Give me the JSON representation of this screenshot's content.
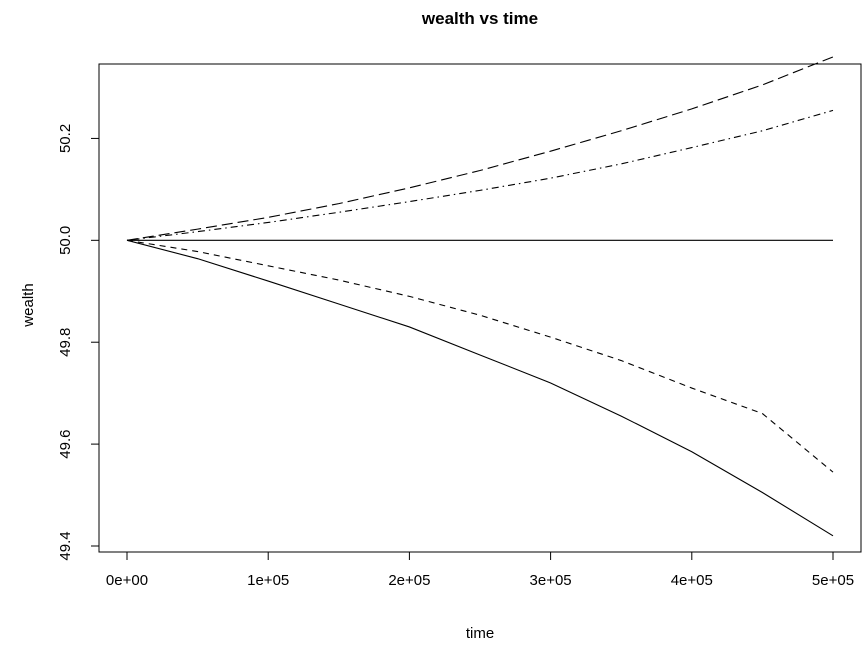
{
  "chart_data": {
    "type": "line",
    "title": "wealth vs time",
    "xlabel": "time",
    "ylabel": "wealth",
    "xlim": [
      0,
      500000
    ],
    "ylim": [
      49.4,
      50.35
    ],
    "x_ticks": [
      0,
      100000,
      200000,
      300000,
      400000,
      500000
    ],
    "x_tick_labels": [
      "0e+00",
      "1e+05",
      "2e+05",
      "3e+05",
      "4e+05",
      "5e+05"
    ],
    "y_ticks": [
      49.4,
      49.6,
      49.8,
      50.0,
      50.2
    ],
    "y_tick_labels": [
      "49.4",
      "49.6",
      "49.8",
      "50.0",
      "50.2"
    ],
    "grid": false,
    "x": [
      0,
      50000,
      100000,
      150000,
      200000,
      250000,
      300000,
      350000,
      400000,
      450000,
      500000
    ],
    "series": [
      {
        "line_style": "solid",
        "values": [
          50.0,
          49.964,
          49.92,
          49.875,
          49.83,
          49.775,
          49.72,
          49.655,
          49.585,
          49.505,
          49.42
        ]
      },
      {
        "line_style": "dashed",
        "values": [
          50.0,
          49.978,
          49.95,
          49.922,
          49.89,
          49.853,
          49.81,
          49.764,
          49.71,
          49.66,
          49.545
        ]
      },
      {
        "line_style": "solid",
        "values": [
          50.0,
          50.0,
          50.0,
          50.0,
          50.0,
          50.0,
          50.0,
          50.0,
          50.0,
          50.0,
          50.0
        ]
      },
      {
        "line_style": "dotdash",
        "values": [
          50.0,
          50.017,
          50.035,
          50.055,
          50.076,
          50.098,
          50.122,
          50.15,
          50.182,
          50.215,
          50.255
        ]
      },
      {
        "line_style": "longdash",
        "values": [
          50.0,
          50.022,
          50.045,
          50.072,
          50.103,
          50.137,
          50.175,
          50.215,
          50.258,
          50.305,
          50.36
        ]
      }
    ]
  }
}
